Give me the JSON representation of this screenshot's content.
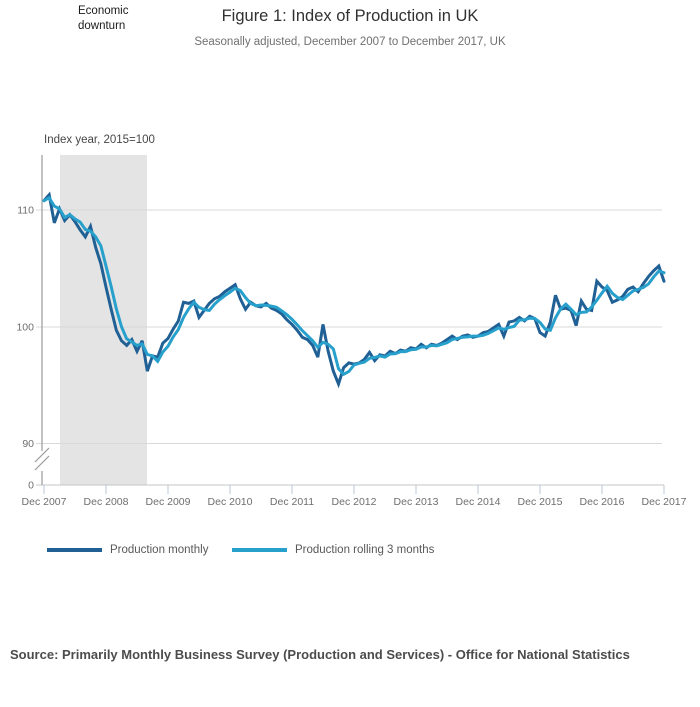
{
  "header": {
    "annotation": "Economic downturn",
    "title": "Figure 1: Index of Production in UK",
    "subtitle": "Seasonally adjusted, December 2007 to December 2017, UK"
  },
  "chart": {
    "axis_unit_label": "Index year, 2015=100",
    "y_tick_labels": [
      "110",
      "100",
      "90",
      "0"
    ],
    "x_tick_labels": [
      "Dec 2007",
      "Dec 2008",
      "Dec 2009",
      "Dec 2010",
      "Dec 2011",
      "Dec 2012",
      "Dec 2013",
      "Dec 2014",
      "Dec 2015",
      "Dec 2016",
      "Dec 2017"
    ],
    "legend": [
      {
        "label": "Production monthly",
        "color": "#206095"
      },
      {
        "label": "Production rolling 3 months",
        "color": "#27A0CC"
      }
    ],
    "colors": {
      "downturn_band": "#e4e4e4",
      "gridline": "#d9d9d9",
      "axis": "#9a9a9a",
      "baseline": "#c4c4c4",
      "x_tick": "#b9c7d4",
      "tick_text": "#6e6e6e"
    }
  },
  "footer": {
    "source": "Source: Primarily Monthly Business Survey (Production and Services) - Office for National Statistics"
  },
  "chart_data": {
    "type": "line",
    "title": "Figure 1: Index of Production in UK",
    "subtitle": "Seasonally adjusted, December 2007 to December 2017, UK",
    "xlabel": "",
    "ylabel": "Index year, 2015=100",
    "x": {
      "start": "Dec 2007",
      "end": "Dec 2017",
      "step": "1 month",
      "count": 121
    },
    "x_tick_labels": [
      "Dec 2007",
      "Dec 2008",
      "Dec 2009",
      "Dec 2010",
      "Dec 2011",
      "Dec 2012",
      "Dec 2013",
      "Dec 2014",
      "Dec 2015",
      "Dec 2016",
      "Dec 2017"
    ],
    "y_ticks_shown": [
      0,
      90,
      100,
      110
    ],
    "y_axis_break": true,
    "ylim_plotted": [
      88,
      114.5
    ],
    "grid": "horizontal",
    "legend_position": "bottom",
    "annotation_band": {
      "label": "Economic downturn",
      "x_from": "Apr 2008",
      "x_to": "Aug 2009"
    },
    "series": [
      {
        "name": "Production monthly",
        "color": "#206095",
        "values": [
          110.8,
          111.3,
          108.9,
          110.1,
          109.1,
          109.6,
          109.0,
          108.3,
          107.7,
          108.6,
          106.8,
          105.4,
          103.4,
          101.5,
          99.7,
          98.8,
          98.4,
          98.9,
          97.9,
          98.8,
          96.2,
          97.5,
          97.4,
          98.6,
          99.0,
          99.8,
          100.5,
          102.1,
          102.0,
          102.2,
          100.8,
          101.4,
          102.0,
          102.4,
          102.6,
          103.0,
          103.3,
          103.6,
          102.4,
          101.5,
          102.1,
          101.8,
          101.7,
          102.0,
          101.6,
          101.4,
          101.1,
          100.6,
          100.2,
          99.7,
          99.1,
          98.9,
          98.4,
          97.4,
          100.2,
          97.9,
          96.2,
          95.1,
          96.5,
          96.9,
          96.8,
          96.9,
          97.2,
          97.8,
          97.1,
          97.6,
          97.5,
          97.9,
          97.7,
          98.0,
          97.9,
          98.2,
          98.1,
          98.5,
          98.2,
          98.5,
          98.4,
          98.6,
          98.9,
          99.2,
          98.9,
          99.2,
          99.3,
          99.1,
          99.2,
          99.5,
          99.6,
          99.9,
          100.2,
          99.2,
          100.4,
          100.5,
          100.8,
          100.5,
          100.9,
          100.7,
          99.5,
          99.2,
          100.4,
          102.7,
          101.5,
          101.6,
          101.4,
          100.1,
          102.2,
          101.5,
          101.4,
          103.9,
          103.4,
          103.1,
          102.1,
          102.3,
          102.6,
          103.2,
          103.4,
          103.0,
          103.7,
          104.3,
          104.8,
          105.2,
          103.9
        ]
      },
      {
        "name": "Production rolling 3 months",
        "color": "#27A0CC",
        "derived": "trailing 3-month mean of Production monthly (computed by renderer)"
      }
    ]
  }
}
